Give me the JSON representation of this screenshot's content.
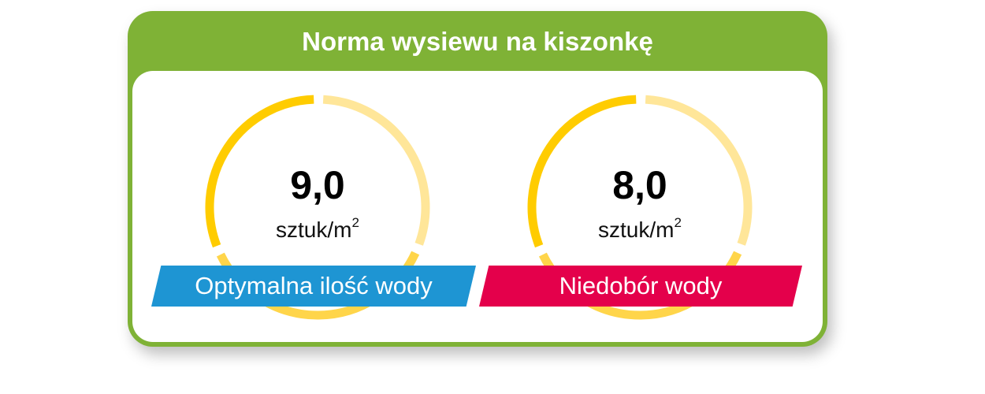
{
  "title": "Norma wysiewu na kiszonkę",
  "colors": {
    "frame": "#7fb236",
    "gauge_dark": "#ffcc00",
    "gauge_mid": "#ffd54a",
    "gauge_light": "#ffe699",
    "blue": "#1e95d3",
    "red": "#e4004b"
  },
  "gauges": [
    {
      "value": "9,0",
      "unit": "sztuk/m",
      "unit_sup": "2",
      "label": "Optymalna ilość wody",
      "label_color": "#1e95d3"
    },
    {
      "value": "8,0",
      "unit": "sztuk/m",
      "unit_sup": "2",
      "label": "Niedobór wody",
      "label_color": "#e4004b"
    }
  ]
}
